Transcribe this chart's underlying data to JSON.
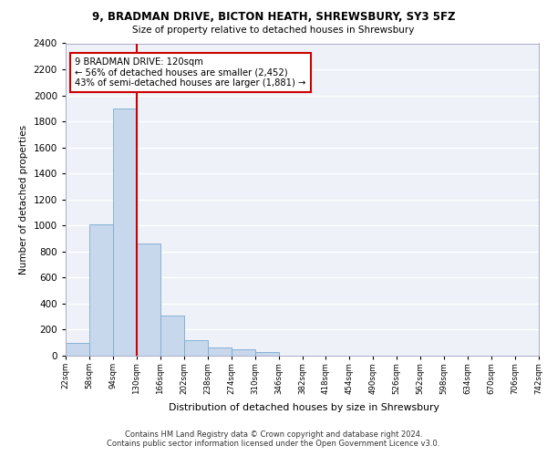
{
  "title1": "9, BRADMAN DRIVE, BICTON HEATH, SHREWSBURY, SY3 5FZ",
  "title2": "Size of property relative to detached houses in Shrewsbury",
  "xlabel": "Distribution of detached houses by size in Shrewsbury",
  "ylabel": "Number of detached properties",
  "bin_labels": [
    "22sqm",
    "58sqm",
    "94sqm",
    "130sqm",
    "166sqm",
    "202sqm",
    "238sqm",
    "274sqm",
    "310sqm",
    "346sqm",
    "382sqm",
    "418sqm",
    "454sqm",
    "490sqm",
    "526sqm",
    "562sqm",
    "598sqm",
    "634sqm",
    "670sqm",
    "706sqm",
    "742sqm"
  ],
  "bar_values": [
    100,
    1010,
    1900,
    860,
    310,
    120,
    60,
    50,
    30,
    0,
    0,
    0,
    0,
    0,
    0,
    0,
    0,
    0,
    0,
    0
  ],
  "bar_color": "#c8d8ec",
  "bar_edge_color": "#7aaad0",
  "vline_x": 3,
  "vline_color": "#cc0000",
  "annotation_text": "9 BRADMAN DRIVE: 120sqm\n← 56% of detached houses are smaller (2,452)\n43% of semi-detached houses are larger (1,881) →",
  "annotation_box_color": "#cc0000",
  "ylim": [
    0,
    2400
  ],
  "yticks": [
    0,
    200,
    400,
    600,
    800,
    1000,
    1200,
    1400,
    1600,
    1800,
    2000,
    2200,
    2400
  ],
  "footer1": "Contains HM Land Registry data © Crown copyright and database right 2024.",
  "footer2": "Contains public sector information licensed under the Open Government Licence v3.0.",
  "plot_bg_color": "#eef2f8"
}
